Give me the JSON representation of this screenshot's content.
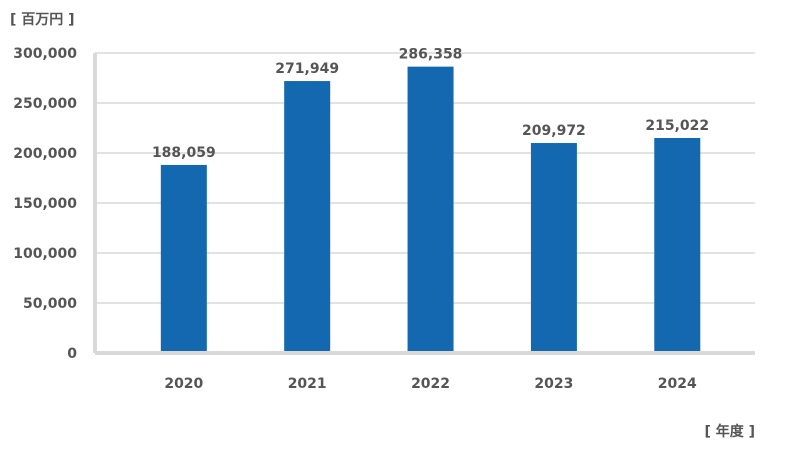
{
  "chart_data": {
    "type": "bar",
    "y_unit_label": "[ 百万円 ]",
    "x_unit_label": "[ 年度 ]",
    "categories": [
      "2020",
      "2021",
      "2022",
      "2023",
      "2024"
    ],
    "values": [
      188059,
      271949,
      286358,
      209972,
      215022
    ],
    "value_labels": [
      "188,059",
      "271,949",
      "286,358",
      "209,972",
      "215,022"
    ],
    "y_ticks": [
      "0",
      "50,000",
      "100,000",
      "150,000",
      "200,000",
      "250,000",
      "300,000"
    ],
    "ylim": [
      0,
      300000
    ],
    "grid": true,
    "bar_color": "#1468b0",
    "grid_color": "#d9d9d9",
    "axis_color": "#d9d9d9"
  }
}
